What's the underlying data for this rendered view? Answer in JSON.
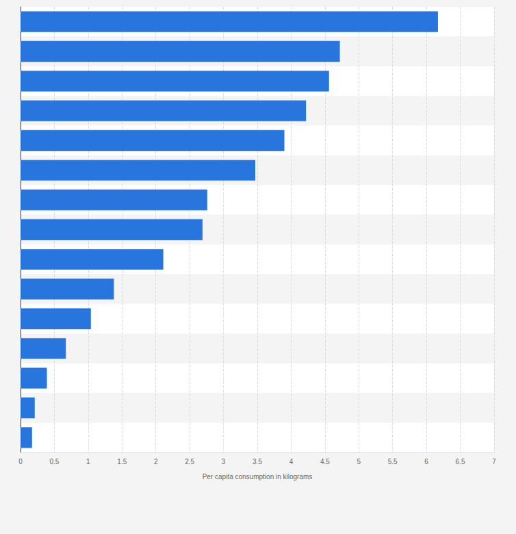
{
  "chart_data": {
    "type": "bar",
    "orientation": "horizontal",
    "x_label": "Per capita consumption in kilograms",
    "categories": [
      null,
      null,
      null,
      null,
      null,
      null,
      null,
      null,
      null,
      null,
      null,
      null,
      null,
      null,
      null
    ],
    "values": [
      6.17,
      4.72,
      4.56,
      4.22,
      3.9,
      3.47,
      2.76,
      2.69,
      2.11,
      1.38,
      1.04,
      0.67,
      0.39,
      0.21,
      0.17
    ],
    "color": "#2876dd",
    "xlim": [
      0,
      7
    ],
    "xticks": [
      0,
      0.5,
      1,
      1.5,
      2,
      2.5,
      3,
      3.5,
      4,
      4.5,
      5,
      5.5,
      6,
      6.5,
      7
    ],
    "grid": true,
    "tick_labels": "x"
  }
}
